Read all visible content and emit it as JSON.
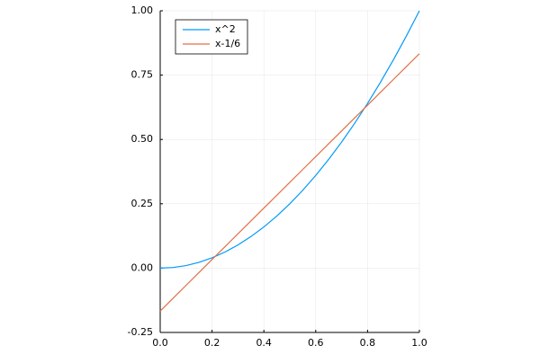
{
  "chart_data": {
    "type": "line",
    "x": [
      0,
      0.05,
      0.1,
      0.15,
      0.2,
      0.25,
      0.3,
      0.35,
      0.4,
      0.45,
      0.5,
      0.55,
      0.6,
      0.65,
      0.7,
      0.75,
      0.8,
      0.85,
      0.9,
      0.95,
      1
    ],
    "series": [
      {
        "name": "x^2",
        "color": "#009af9",
        "values": [
          0,
          0.0025,
          0.01,
          0.0225,
          0.04,
          0.0625,
          0.09,
          0.1225,
          0.16,
          0.2025,
          0.25,
          0.3025,
          0.36,
          0.4225,
          0.49,
          0.5625,
          0.64,
          0.7225,
          0.81,
          0.9025,
          1
        ]
      },
      {
        "name": "x-1/6",
        "color": "#e26f46",
        "values": [
          -0.1667,
          -0.1167,
          -0.0667,
          -0.0167,
          0.0333,
          0.0833,
          0.1333,
          0.1833,
          0.2333,
          0.2833,
          0.3333,
          0.3833,
          0.4333,
          0.4833,
          0.5333,
          0.5833,
          0.6333,
          0.6833,
          0.7333,
          0.7833,
          0.8333
        ]
      }
    ],
    "xlim": [
      0,
      1
    ],
    "xticks": [
      {
        "value": 0,
        "label": "0.0"
      },
      0.2,
      0.4,
      0.6,
      0.8,
      {
        "value": 1,
        "label": "1.0"
      }
    ],
    "ylim": [
      -0.25,
      1
    ],
    "yticks": [
      -0.25,
      {
        "value": 0,
        "label": "0.00"
      },
      0.25,
      {
        "value": 0.5,
        "label": "0.50"
      },
      0.75,
      {
        "value": 1,
        "label": "1.00"
      }
    ],
    "grid": true,
    "legend": "top-left"
  }
}
